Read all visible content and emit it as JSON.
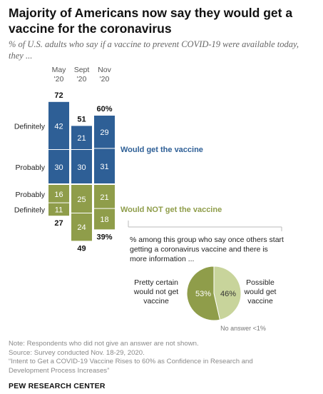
{
  "title": "Majority of Americans now say they would get a vaccine for the coronavirus",
  "subtitle": "% of U.S. adults who say if a vaccine to prevent COVID-19 were available today, they ...",
  "chart_data": [
    {
      "type": "bar",
      "stacked": "diverging",
      "categories": [
        "May\n'20",
        "Sept\n'20",
        "Nov\n'20"
      ],
      "series": [
        {
          "name": "Definitely",
          "group": "Would get the vaccine",
          "values": [
            42,
            21,
            29
          ],
          "color": "#2e5f96"
        },
        {
          "name": "Probably",
          "group": "Would get the vaccine",
          "values": [
            30,
            30,
            31
          ],
          "color": "#2e5f96"
        },
        {
          "name": "Probably",
          "group": "Would NOT get the vaccine",
          "values": [
            16,
            25,
            21
          ],
          "color": "#8f9d4a"
        },
        {
          "name": "Definitely",
          "group": "Would NOT get the vaccine",
          "values": [
            11,
            24,
            18
          ],
          "color": "#8f9d4a"
        }
      ],
      "totals_top": [
        "72",
        "51",
        "60%"
      ],
      "totals_bottom": [
        "27",
        "49",
        "39%"
      ],
      "group_labels": {
        "positive": "Would get the vaccine",
        "negative": "Would NOT get the vaccine"
      }
    },
    {
      "type": "pie",
      "title": "% among this group who say once others start getting a coronavirus vaccine and there is more information ...",
      "slices": [
        {
          "label": "Pretty certain would not get vaccine",
          "value": 53,
          "color": "#8f9d4a"
        },
        {
          "label": "Possible would get vaccine",
          "value": 46,
          "color": "#c8d49b"
        }
      ],
      "note": "No answer <1%"
    }
  ],
  "notes": [
    "Note: Respondents who did not give an answer are not shown.",
    "Source: Survey conducted Nov. 18-29, 2020.",
    "“Intent to Get a COVID-19 Vaccine Rises to 60% as Confidence in Research and",
    "Development Process Increases”"
  ],
  "source_label": "PEW RESEARCH CENTER"
}
